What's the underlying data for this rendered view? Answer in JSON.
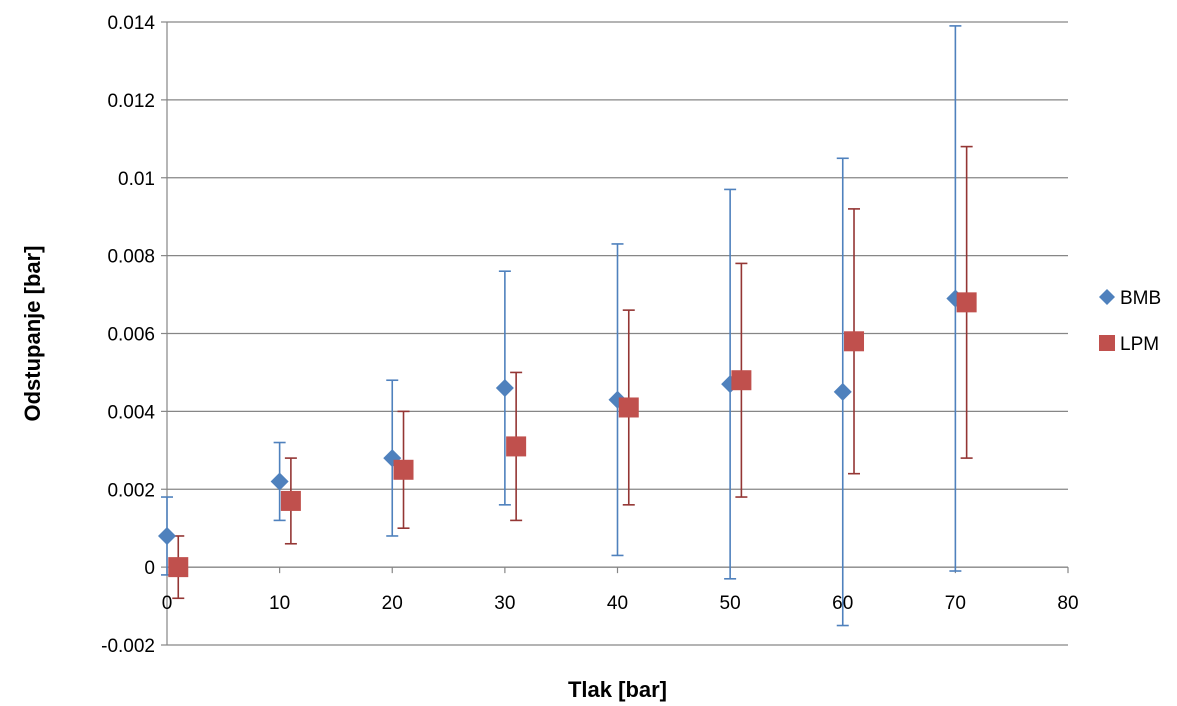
{
  "chart_data": {
    "type": "scatter",
    "title": "",
    "xlabel": "Tlak [bar]",
    "ylabel": "Odstupanje [bar]",
    "xlim": [
      0,
      80
    ],
    "ylim": [
      -0.002,
      0.014
    ],
    "x_ticks": [
      0,
      10,
      20,
      30,
      40,
      50,
      60,
      70,
      80
    ],
    "y_ticks": [
      -0.002,
      0,
      0.002,
      0.004,
      0.006,
      0.008,
      0.01,
      0.012,
      0.014
    ],
    "x_tick_labels": [
      "0",
      "10",
      "20",
      "30",
      "40",
      "50",
      "60",
      "70",
      "80"
    ],
    "y_tick_labels": [
      "-0.002",
      "0",
      "0.002",
      "0.004",
      "0.006",
      "0.008",
      "0.01",
      "0.012",
      "0.014"
    ],
    "grid": "horizontal",
    "legend_position": "right",
    "series": [
      {
        "name": "BMB",
        "marker": "diamond",
        "color": "#4F81BD",
        "error_color": "#4F81BD",
        "x": [
          0,
          10,
          20,
          30,
          40,
          50,
          60,
          70
        ],
        "y": [
          0.0008,
          0.0022,
          0.0028,
          0.0046,
          0.0043,
          0.0047,
          0.0045,
          0.0069
        ],
        "err_low": [
          -0.0002,
          0.0012,
          0.0008,
          0.0016,
          0.0003,
          -0.0003,
          -0.0015,
          -0.0001
        ],
        "err_high": [
          0.0018,
          0.0032,
          0.0048,
          0.0076,
          0.0083,
          0.0097,
          0.0105,
          0.0139
        ]
      },
      {
        "name": "LPM",
        "marker": "square",
        "color": "#C0504D",
        "error_color": "#943634",
        "x": [
          1,
          11,
          21,
          31,
          41,
          51,
          61,
          71
        ],
        "y": [
          0.0,
          0.0017,
          0.0025,
          0.0031,
          0.0041,
          0.0048,
          0.0058,
          0.0068
        ],
        "err_low": [
          -0.0008,
          0.0006,
          0.001,
          0.0012,
          0.0016,
          0.0018,
          0.0024,
          0.0028
        ],
        "err_high": [
          0.0008,
          0.0028,
          0.004,
          0.005,
          0.0066,
          0.0078,
          0.0092,
          0.0108
        ]
      }
    ]
  }
}
